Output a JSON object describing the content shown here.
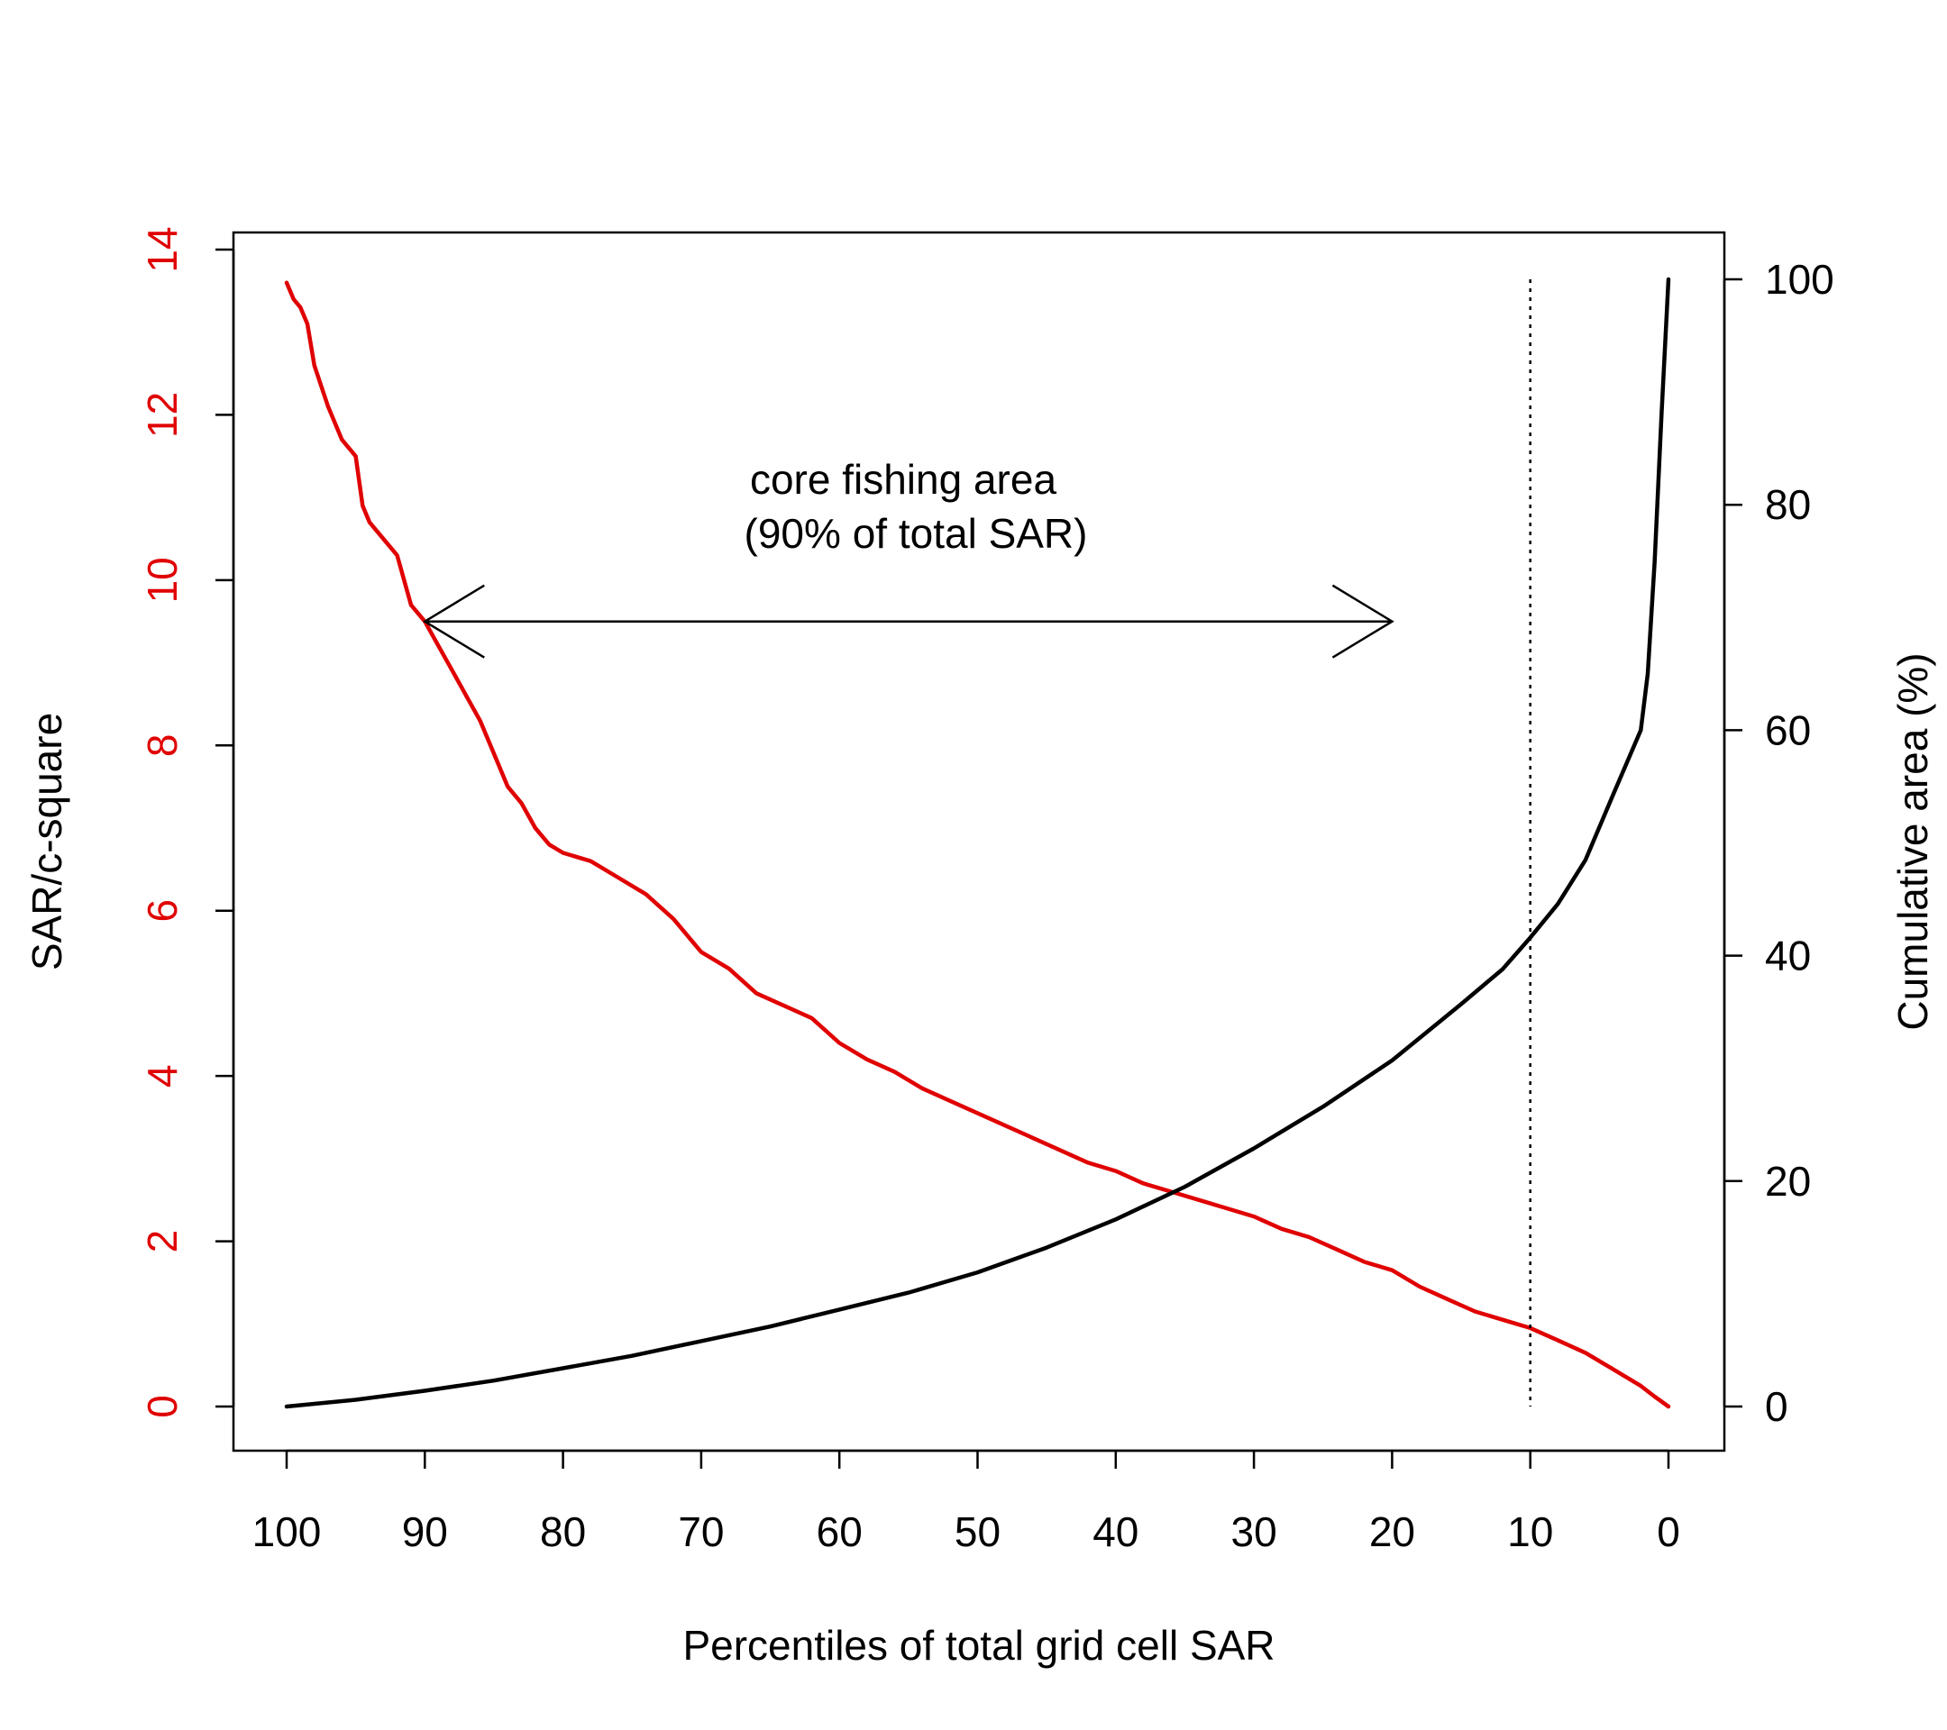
{
  "chart_data": {
    "type": "line",
    "title": "",
    "xlabel": "Percentiles of total grid cell SAR",
    "ylabel_left": "SAR/c-square",
    "ylabel_right": "Cumulative area (%)",
    "x_reversed": true,
    "xlim": [
      100,
      0
    ],
    "ylim_left": [
      0,
      14
    ],
    "ylim_right": [
      0,
      100
    ],
    "x_ticks": [
      "100",
      "90",
      "80",
      "70",
      "60",
      "50",
      "40",
      "30",
      "20",
      "10",
      "0"
    ],
    "y_left_ticks": [
      "0",
      "2",
      "4",
      "6",
      "8",
      "10",
      "12",
      "14"
    ],
    "y_right_ticks": [
      "0",
      "20",
      "40",
      "60",
      "80",
      "100"
    ],
    "grid": false,
    "colors": {
      "sar": "#e00000",
      "cumulative": "#000000",
      "axis_left_text": "#e00000"
    },
    "series": [
      {
        "axis": "left",
        "color": "#e00000",
        "x": [
          100,
          99.5,
          99,
          98.5,
          98,
          97,
          96,
          95,
          94.5,
          94,
          93,
          92,
          91.5,
          91,
          90,
          89,
          88,
          87,
          86,
          85,
          84,
          83,
          82,
          81,
          80,
          78,
          76,
          74,
          72,
          70,
          68,
          66,
          64,
          62,
          60,
          58,
          56,
          54,
          52,
          50,
          48,
          46,
          44,
          42,
          40,
          38,
          36,
          34,
          32,
          30,
          28,
          26,
          24,
          22,
          20,
          18,
          16,
          14,
          12,
          10,
          8,
          6,
          4,
          2,
          1,
          0
        ],
        "values": [
          13.6,
          13.4,
          13.3,
          13.1,
          12.6,
          12.1,
          11.7,
          11.5,
          10.9,
          10.7,
          10.5,
          10.3,
          10.0,
          9.7,
          9.5,
          9.2,
          8.9,
          8.6,
          8.3,
          7.9,
          7.5,
          7.3,
          7.0,
          6.8,
          6.7,
          6.6,
          6.4,
          6.2,
          5.9,
          5.5,
          5.3,
          5.0,
          4.85,
          4.7,
          4.4,
          4.2,
          4.05,
          3.85,
          3.7,
          3.55,
          3.4,
          3.25,
          3.1,
          2.95,
          2.85,
          2.7,
          2.6,
          2.5,
          2.4,
          2.3,
          2.15,
          2.05,
          1.9,
          1.75,
          1.65,
          1.45,
          1.3,
          1.15,
          1.05,
          0.95,
          0.8,
          0.65,
          0.45,
          0.25,
          0.12,
          0.0
        ]
      },
      {
        "axis": "right",
        "color": "#000000",
        "x": [
          100,
          95,
          90,
          85,
          80,
          75,
          70,
          65,
          60,
          55,
          50,
          45,
          40,
          35,
          30,
          25,
          20,
          15,
          12,
          10,
          8,
          6,
          4,
          2,
          1.5,
          1,
          0.5,
          0
        ],
        "values": [
          0,
          0.6,
          1.4,
          2.3,
          3.4,
          4.5,
          5.8,
          7.1,
          8.6,
          10.1,
          11.9,
          14.1,
          16.6,
          19.5,
          22.9,
          26.6,
          30.7,
          35.7,
          38.8,
          41.6,
          44.6,
          48.5,
          54.3,
          60,
          65,
          75,
          88,
          100
        ]
      }
    ],
    "reference_line": {
      "x": 10,
      "style": "dotted"
    },
    "annotations": {
      "line1": "core fishing area",
      "line2": "(90% of total SAR)",
      "arrow_from_x": 90,
      "arrow_to_x": 20,
      "arrow_y_left": 9.5
    }
  }
}
